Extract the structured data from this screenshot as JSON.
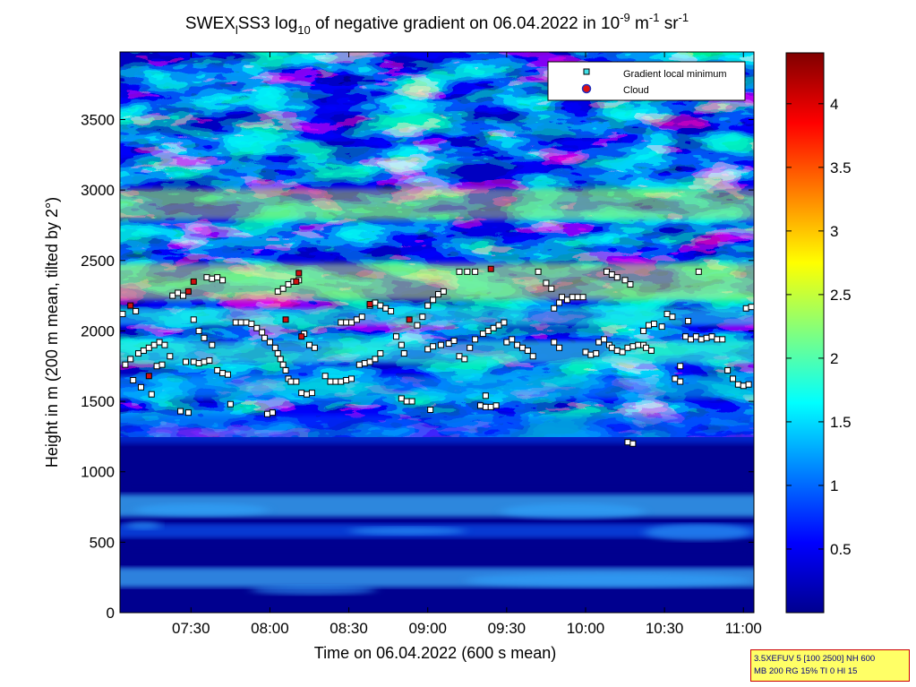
{
  "title": {
    "prefix": "SWEX",
    "sub_l": "l",
    "mid": "SS3 log",
    "sub_10": "10",
    "rest": " of negative gradient on 06.04.2022 in 10",
    "sup1": "-9",
    "unit_m": " m",
    "sup2": "-1",
    "unit_sr": " sr",
    "sup3": "-1"
  },
  "chart_data": {
    "type": "heatmap",
    "title": "SWEX_l SS3 log10 of negative gradient on 06.04.2022 in 10^-9 m^-1 sr^-1",
    "xlabel": "Time on 06.04.2022 (600 s mean)",
    "ylabel": "Height in m (200 m mean, tilted by 2°)",
    "x_range": [
      "07:03",
      "11:04"
    ],
    "x_ticks": [
      "07:30",
      "08:00",
      "08:30",
      "09:00",
      "09:30",
      "10:00",
      "10:30",
      "11:00"
    ],
    "ylim": [
      0,
      3980
    ],
    "y_ticks": [
      0,
      500,
      1000,
      1500,
      2000,
      2500,
      3000,
      3500
    ],
    "colorbar": {
      "ticks": [
        "0.5",
        "1",
        "1.5",
        "2",
        "2.5",
        "3",
        "3.5",
        "4"
      ],
      "range": [
        0,
        4.4
      ],
      "colormap": "jet"
    },
    "legend": {
      "placement": "top-right",
      "entries": [
        "Gradient local minimum",
        "Cloud"
      ]
    },
    "series": [
      {
        "name": "Gradient local minimum",
        "points": [
          [
            "07:04",
            2120
          ],
          [
            "07:05",
            1760
          ],
          [
            "07:07",
            1800
          ],
          [
            "07:09",
            2140
          ],
          [
            "07:10",
            1840
          ],
          [
            "07:12",
            1860
          ],
          [
            "07:14",
            1880
          ],
          [
            "07:16",
            1900
          ],
          [
            "07:18",
            1920
          ],
          [
            "07:20",
            1900
          ],
          [
            "07:08",
            1650
          ],
          [
            "07:11",
            1600
          ],
          [
            "07:15",
            1550
          ],
          [
            "07:22",
            1820
          ],
          [
            "07:23",
            2250
          ],
          [
            "07:25",
            2270
          ],
          [
            "07:27",
            2250
          ],
          [
            "07:28",
            1780
          ],
          [
            "07:31",
            1780
          ],
          [
            "07:33",
            1770
          ],
          [
            "07:35",
            1780
          ],
          [
            "07:37",
            1790
          ],
          [
            "07:26",
            1430
          ],
          [
            "07:29",
            1420
          ],
          [
            "07:36",
            2380
          ],
          [
            "07:38",
            2370
          ],
          [
            "07:40",
            2380
          ],
          [
            "07:42",
            2360
          ],
          [
            "07:31",
            2080
          ],
          [
            "07:33",
            2000
          ],
          [
            "07:35",
            1950
          ],
          [
            "07:38",
            1900
          ],
          [
            "07:40",
            1720
          ],
          [
            "07:42",
            1700
          ],
          [
            "07:44",
            1690
          ],
          [
            "07:45",
            1480
          ],
          [
            "07:47",
            2060
          ],
          [
            "07:49",
            2060
          ],
          [
            "07:51",
            2060
          ],
          [
            "07:53",
            2050
          ],
          [
            "07:55",
            2020
          ],
          [
            "07:57",
            1990
          ],
          [
            "07:58",
            1950
          ],
          [
            "08:00",
            1920
          ],
          [
            "07:59",
            1410
          ],
          [
            "08:01",
            1420
          ],
          [
            "08:02",
            1880
          ],
          [
            "08:03",
            1840
          ],
          [
            "08:04",
            1800
          ],
          [
            "08:05",
            1760
          ],
          [
            "08:06",
            1720
          ],
          [
            "08:07",
            1660
          ],
          [
            "08:08",
            1640
          ],
          [
            "08:10",
            1640
          ],
          [
            "08:03",
            2280
          ],
          [
            "08:05",
            2300
          ],
          [
            "08:07",
            2330
          ],
          [
            "08:09",
            2350
          ],
          [
            "08:11",
            2360
          ],
          [
            "08:12",
            1560
          ],
          [
            "08:14",
            1550
          ],
          [
            "08:16",
            1560
          ],
          [
            "08:13",
            1980
          ],
          [
            "08:15",
            1900
          ],
          [
            "08:17",
            1880
          ],
          [
            "08:21",
            1680
          ],
          [
            "08:23",
            1640
          ],
          [
            "08:25",
            1640
          ],
          [
            "08:27",
            1640
          ],
          [
            "08:29",
            1650
          ],
          [
            "08:31",
            1660
          ],
          [
            "08:27",
            2060
          ],
          [
            "08:29",
            2060
          ],
          [
            "08:31",
            2060
          ],
          [
            "08:33",
            2080
          ],
          [
            "08:35",
            2100
          ],
          [
            "08:36",
            1770
          ],
          [
            "08:38",
            1780
          ],
          [
            "08:40",
            1800
          ],
          [
            "08:42",
            1840
          ],
          [
            "08:38",
            2180
          ],
          [
            "08:40",
            2200
          ],
          [
            "08:42",
            2180
          ],
          [
            "08:44",
            2160
          ],
          [
            "08:46",
            2140
          ],
          [
            "08:48",
            1960
          ],
          [
            "08:50",
            1900
          ],
          [
            "08:51",
            1840
          ],
          [
            "08:50",
            1520
          ],
          [
            "08:52",
            1500
          ],
          [
            "08:54",
            1500
          ],
          [
            "08:56",
            2040
          ],
          [
            "08:58",
            2100
          ],
          [
            "09:00",
            2180
          ],
          [
            "09:02",
            2220
          ],
          [
            "09:04",
            2260
          ],
          [
            "09:06",
            2280
          ],
          [
            "09:00",
            1870
          ],
          [
            "09:02",
            1890
          ],
          [
            "09:05",
            1900
          ],
          [
            "09:08",
            1910
          ],
          [
            "09:10",
            1930
          ],
          [
            "09:12",
            1820
          ],
          [
            "09:14",
            1800
          ],
          [
            "09:16",
            1880
          ],
          [
            "09:18",
            1940
          ],
          [
            "09:12",
            2420
          ],
          [
            "09:15",
            2420
          ],
          [
            "09:18",
            2420
          ],
          [
            "09:20",
            1470
          ],
          [
            "09:22",
            1460
          ],
          [
            "09:24",
            1460
          ],
          [
            "09:26",
            1470
          ],
          [
            "09:21",
            1980
          ],
          [
            "09:23",
            2000
          ],
          [
            "09:25",
            2020
          ],
          [
            "09:27",
            2040
          ],
          [
            "09:29",
            2060
          ],
          [
            "09:30",
            1920
          ],
          [
            "09:32",
            1940
          ],
          [
            "09:34",
            1900
          ],
          [
            "09:36",
            1880
          ],
          [
            "09:38",
            1860
          ],
          [
            "09:40",
            1820
          ],
          [
            "09:42",
            2420
          ],
          [
            "09:45",
            2340
          ],
          [
            "09:47",
            2300
          ],
          [
            "09:48",
            2160
          ],
          [
            "09:50",
            2200
          ],
          [
            "09:51",
            2240
          ],
          [
            "09:48",
            1920
          ],
          [
            "09:50",
            1880
          ],
          [
            "09:53",
            2220
          ],
          [
            "09:55",
            2240
          ],
          [
            "09:57",
            2240
          ],
          [
            "09:59",
            2240
          ],
          [
            "10:00",
            1850
          ],
          [
            "10:02",
            1830
          ],
          [
            "10:04",
            1840
          ],
          [
            "10:05",
            1920
          ],
          [
            "10:07",
            1940
          ],
          [
            "10:09",
            1900
          ],
          [
            "10:10",
            1880
          ],
          [
            "10:12",
            1860
          ],
          [
            "10:14",
            1850
          ],
          [
            "10:16",
            1880
          ],
          [
            "10:18",
            1890
          ],
          [
            "10:20",
            1900
          ],
          [
            "10:22",
            1900
          ],
          [
            "10:08",
            2420
          ],
          [
            "10:10",
            2400
          ],
          [
            "10:12",
            2380
          ],
          [
            "10:15",
            2360
          ],
          [
            "10:17",
            2330
          ],
          [
            "10:16",
            1210
          ],
          [
            "10:18",
            1200
          ],
          [
            "10:22",
            2000
          ],
          [
            "10:23",
            1880
          ],
          [
            "10:25",
            1860
          ],
          [
            "10:26",
            2050
          ],
          [
            "10:29",
            2030
          ],
          [
            "10:31",
            2120
          ],
          [
            "10:33",
            2100
          ],
          [
            "10:34",
            1660
          ],
          [
            "10:36",
            1640
          ],
          [
            "10:38",
            1960
          ],
          [
            "10:40",
            1940
          ],
          [
            "10:42",
            1960
          ],
          [
            "10:44",
            1940
          ],
          [
            "10:46",
            1950
          ],
          [
            "10:48",
            1960
          ],
          [
            "10:50",
            1940
          ],
          [
            "10:52",
            1940
          ],
          [
            "10:43",
            2420
          ],
          [
            "10:54",
            1720
          ],
          [
            "10:56",
            1660
          ],
          [
            "10:58",
            1620
          ],
          [
            "11:00",
            1610
          ],
          [
            "11:02",
            1620
          ],
          [
            "11:01",
            2160
          ],
          [
            "11:03",
            2170
          ],
          [
            "10:39",
            2070
          ],
          [
            "10:36",
            1750
          ],
          [
            "07:17",
            1750
          ],
          [
            "07:19",
            1760
          ],
          [
            "08:34",
            1760
          ],
          [
            "09:01",
            1440
          ],
          [
            "09:22",
            1540
          ],
          [
            "10:24",
            2040
          ]
        ]
      },
      {
        "name": "Cloud",
        "points": [
          [
            "07:07",
            2180
          ],
          [
            "07:29",
            2280
          ],
          [
            "07:31",
            2350
          ],
          [
            "08:10",
            2350
          ],
          [
            "08:11",
            2410
          ],
          [
            "08:06",
            2080
          ],
          [
            "08:12",
            1960
          ],
          [
            "08:38",
            2190
          ],
          [
            "08:53",
            2080
          ],
          [
            "09:24",
            2440
          ],
          [
            "07:14",
            1680
          ]
        ]
      }
    ]
  },
  "infobox": {
    "line1": "3.5XEFUV 5 [100 2500] NH 600",
    "line2": "MB 200 RG 15% TI 0 HI 15"
  }
}
